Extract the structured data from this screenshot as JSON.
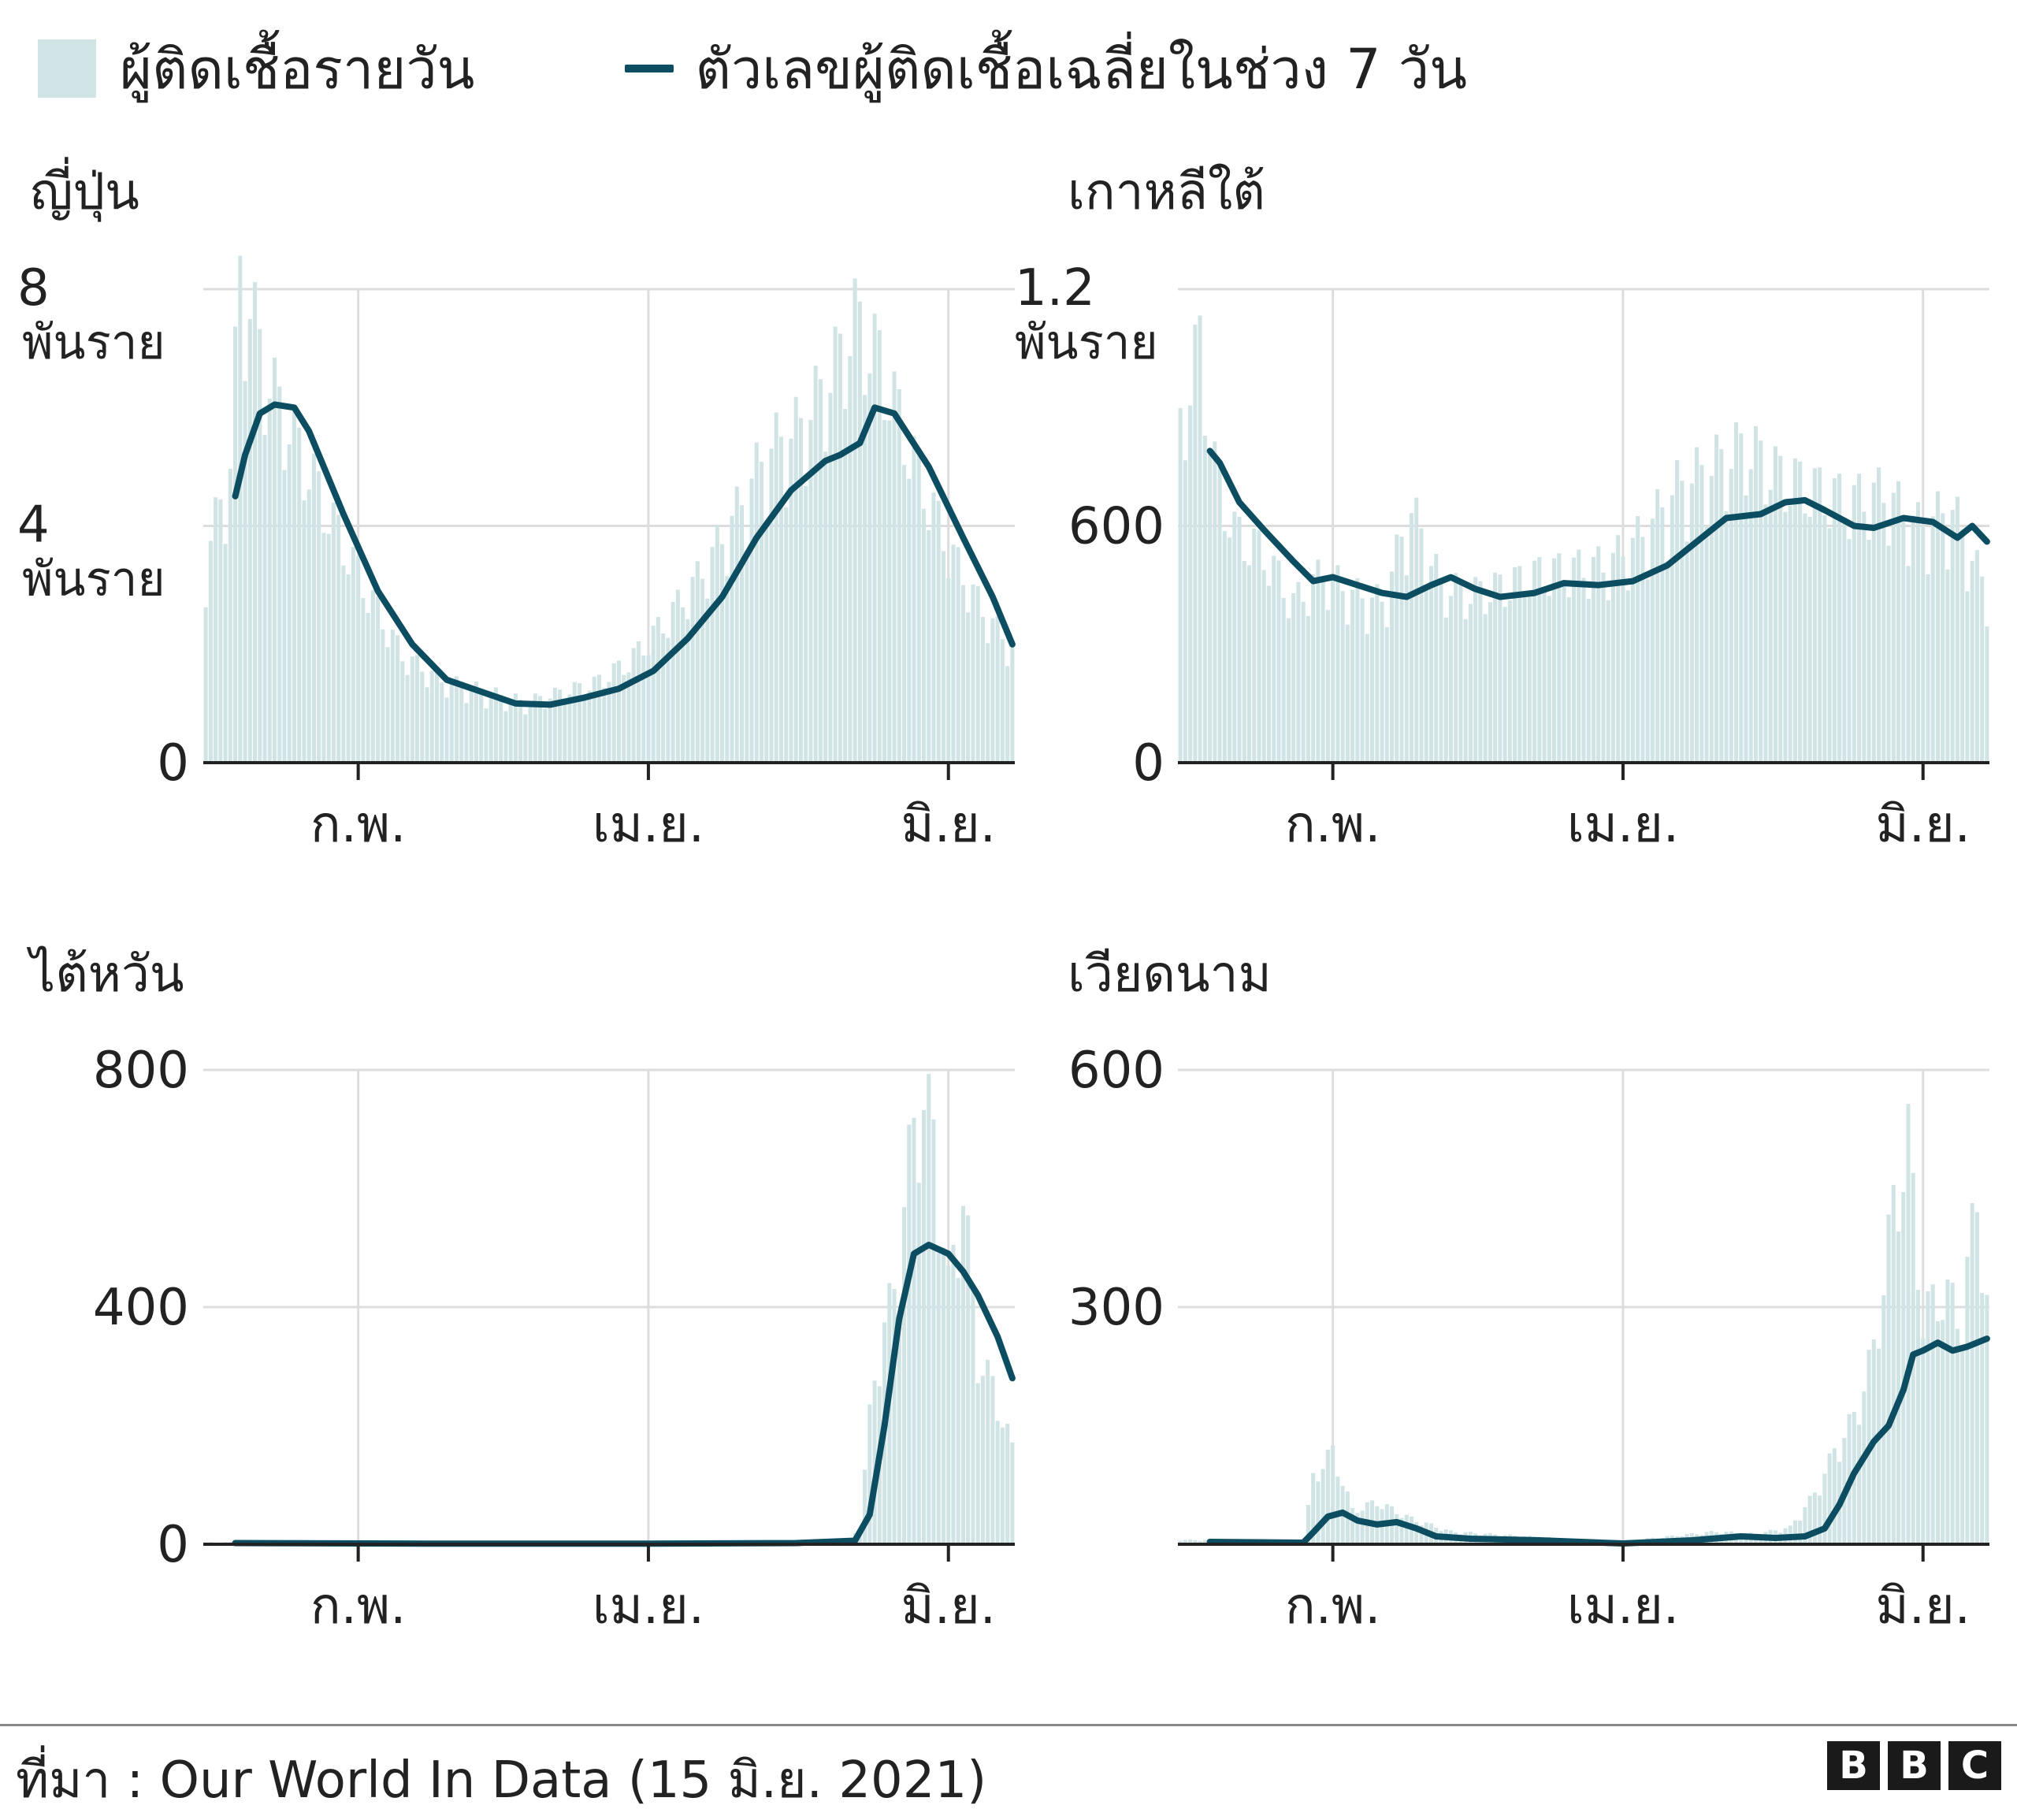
{
  "legend": {
    "daily_label": "ผู้ติดเชื้อรายวัน",
    "avg_label": "ตัวเลขผู้ติดเชื้อเฉลี่ยในช่วง 7 วัน"
  },
  "colors": {
    "bars": "#d1e4e5",
    "line": "#0d4d61",
    "grid": "#dddddd",
    "axis": "#222222"
  },
  "footer": {
    "source": "ที่มา : Our World In Data (15 มิ.ย. 2021)",
    "logo": [
      "B",
      "B",
      "C"
    ]
  },
  "chart_data": [
    {
      "type": "bar",
      "title": "ญี่ปุ่น",
      "x_start": "2021-01-01",
      "x_end": "2021-06-14",
      "xticks": [
        {
          "date": "2021-02-01",
          "label": "ก.พ."
        },
        {
          "date": "2021-04-01",
          "label": "เม.ย."
        },
        {
          "date": "2021-06-01",
          "label": "มิ.ย."
        }
      ],
      "ylim": [
        0,
        8000
      ],
      "yticks": [
        {
          "value": 0,
          "label": "0"
        },
        {
          "value": 4000,
          "label": "4\nพันราย"
        },
        {
          "value": 8000,
          "label": "8\nพันราย"
        }
      ],
      "daily_series": {
        "name": "ผู้ติดเชื้อรายวัน",
        "points": [
          [
            "2021-01-01",
            3200
          ],
          [
            "2021-01-06",
            4700
          ],
          [
            "2021-01-08",
            7800
          ],
          [
            "2021-01-14",
            6000
          ],
          [
            "2021-01-20",
            5000
          ],
          [
            "2021-01-27",
            3800
          ],
          [
            "2021-02-03",
            2700
          ],
          [
            "2021-02-10",
            1700
          ],
          [
            "2021-02-18",
            1300
          ],
          [
            "2021-02-28",
            1100
          ],
          [
            "2021-03-07",
            950
          ],
          [
            "2021-03-14",
            1100
          ],
          [
            "2021-03-21",
            1250
          ],
          [
            "2021-03-28",
            1600
          ],
          [
            "2021-04-04",
            2200
          ],
          [
            "2021-04-11",
            2900
          ],
          [
            "2021-04-18",
            3800
          ],
          [
            "2021-04-25",
            4900
          ],
          [
            "2021-05-02",
            5300
          ],
          [
            "2021-05-08",
            6100
          ],
          [
            "2021-05-13",
            7000
          ],
          [
            "2021-05-18",
            6400
          ],
          [
            "2021-05-25",
            4800
          ],
          [
            "2021-06-01",
            3400
          ],
          [
            "2021-06-08",
            2400
          ],
          [
            "2021-06-14",
            1800
          ]
        ]
      },
      "avg_series": {
        "name": "ตัวเลขผู้ติดเชื้อเฉลี่ยในช่วง 7 วัน",
        "points": [
          [
            "2021-01-07",
            4500
          ],
          [
            "2021-01-09",
            5200
          ],
          [
            "2021-01-12",
            5900
          ],
          [
            "2021-01-15",
            6050
          ],
          [
            "2021-01-19",
            6000
          ],
          [
            "2021-01-22",
            5600
          ],
          [
            "2021-01-29",
            4200
          ],
          [
            "2021-02-05",
            2900
          ],
          [
            "2021-02-12",
            2000
          ],
          [
            "2021-02-19",
            1400
          ],
          [
            "2021-02-26",
            1200
          ],
          [
            "2021-03-05",
            1000
          ],
          [
            "2021-03-12",
            980
          ],
          [
            "2021-03-19",
            1100
          ],
          [
            "2021-03-26",
            1250
          ],
          [
            "2021-04-02",
            1550
          ],
          [
            "2021-04-09",
            2100
          ],
          [
            "2021-04-16",
            2800
          ],
          [
            "2021-04-23",
            3800
          ],
          [
            "2021-04-30",
            4600
          ],
          [
            "2021-05-07",
            5100
          ],
          [
            "2021-05-10",
            5200
          ],
          [
            "2021-05-14",
            5400
          ],
          [
            "2021-05-17",
            6000
          ],
          [
            "2021-05-21",
            5900
          ],
          [
            "2021-05-28",
            5000
          ],
          [
            "2021-06-04",
            3800
          ],
          [
            "2021-06-10",
            2800
          ],
          [
            "2021-06-14",
            2000
          ]
        ]
      }
    },
    {
      "type": "bar",
      "title": "เกาหลีใต้",
      "x_start": "2021-01-01",
      "x_end": "2021-06-14",
      "xticks": [
        {
          "date": "2021-02-01",
          "label": "ก.พ."
        },
        {
          "date": "2021-04-01",
          "label": "เม.ย."
        },
        {
          "date": "2021-06-01",
          "label": "มิ.ย."
        }
      ],
      "ylim": [
        0,
        1200
      ],
      "yticks": [
        {
          "value": 0,
          "label": "0"
        },
        {
          "value": 600,
          "label": "600"
        },
        {
          "value": 1200,
          "label": "1.2\nพันราย"
        }
      ],
      "daily_series": {
        "name": "ผู้ติดเชื้อรายวัน",
        "points": [
          [
            "2021-01-01",
            800
          ],
          [
            "2021-01-05",
            1000
          ],
          [
            "2021-01-08",
            700
          ],
          [
            "2021-01-12",
            550
          ],
          [
            "2021-01-18",
            500
          ],
          [
            "2021-01-24",
            380
          ],
          [
            "2021-01-30",
            450
          ],
          [
            "2021-02-05",
            400
          ],
          [
            "2021-02-11",
            380
          ],
          [
            "2021-02-17",
            600
          ],
          [
            "2021-02-23",
            420
          ],
          [
            "2021-03-01",
            400
          ],
          [
            "2021-03-08",
            420
          ],
          [
            "2021-03-15",
            450
          ],
          [
            "2021-03-22",
            460
          ],
          [
            "2021-03-29",
            470
          ],
          [
            "2021-04-05",
            540
          ],
          [
            "2021-04-12",
            650
          ],
          [
            "2021-04-19",
            700
          ],
          [
            "2021-04-26",
            750
          ],
          [
            "2021-05-03",
            680
          ],
          [
            "2021-05-10",
            650
          ],
          [
            "2021-05-17",
            620
          ],
          [
            "2021-05-24",
            640
          ],
          [
            "2021-05-31",
            560
          ],
          [
            "2021-06-07",
            600
          ],
          [
            "2021-06-14",
            400
          ]
        ]
      },
      "avg_series": {
        "name": "ตัวเลขผู้ติดเชื้อเฉลี่ยในช่วง 7 วัน",
        "points": [
          [
            "2021-01-07",
            790
          ],
          [
            "2021-01-09",
            760
          ],
          [
            "2021-01-13",
            660
          ],
          [
            "2021-01-18",
            590
          ],
          [
            "2021-01-24",
            510
          ],
          [
            "2021-01-28",
            460
          ],
          [
            "2021-02-01",
            470
          ],
          [
            "2021-02-06",
            450
          ],
          [
            "2021-02-11",
            430
          ],
          [
            "2021-02-16",
            420
          ],
          [
            "2021-02-21",
            450
          ],
          [
            "2021-02-25",
            470
          ],
          [
            "2021-03-02",
            440
          ],
          [
            "2021-03-07",
            420
          ],
          [
            "2021-03-14",
            430
          ],
          [
            "2021-03-20",
            455
          ],
          [
            "2021-03-27",
            450
          ],
          [
            "2021-04-03",
            460
          ],
          [
            "2021-04-10",
            500
          ],
          [
            "2021-04-17",
            570
          ],
          [
            "2021-04-22",
            620
          ],
          [
            "2021-04-29",
            630
          ],
          [
            "2021-05-04",
            660
          ],
          [
            "2021-05-08",
            665
          ],
          [
            "2021-05-12",
            640
          ],
          [
            "2021-05-18",
            600
          ],
          [
            "2021-05-22",
            595
          ],
          [
            "2021-05-28",
            620
          ],
          [
            "2021-06-03",
            610
          ],
          [
            "2021-06-08",
            570
          ],
          [
            "2021-06-11",
            600
          ],
          [
            "2021-06-14",
            560
          ]
        ]
      }
    },
    {
      "type": "bar",
      "title": "ไต้หวัน",
      "x_start": "2021-01-01",
      "x_end": "2021-06-14",
      "xticks": [
        {
          "date": "2021-02-01",
          "label": "ก.พ."
        },
        {
          "date": "2021-04-01",
          "label": "เม.ย."
        },
        {
          "date": "2021-06-01",
          "label": "มิ.ย."
        }
      ],
      "ylim": [
        0,
        800
      ],
      "yticks": [
        {
          "value": 0,
          "label": "0"
        },
        {
          "value": 400,
          "label": "400"
        },
        {
          "value": 800,
          "label": "800"
        }
      ],
      "daily_series": {
        "name": "ผู้ติดเชื้อรายวัน",
        "points": [
          [
            "2021-01-01",
            3
          ],
          [
            "2021-05-12",
            5
          ],
          [
            "2021-05-14",
            30
          ],
          [
            "2021-05-16",
            200
          ],
          [
            "2021-05-18",
            320
          ],
          [
            "2021-05-21",
            400
          ],
          [
            "2021-05-24",
            600
          ],
          [
            "2021-05-26",
            720
          ],
          [
            "2021-05-29",
            650
          ],
          [
            "2021-06-01",
            400
          ],
          [
            "2021-06-04",
            560
          ],
          [
            "2021-06-07",
            300
          ],
          [
            "2021-06-10",
            250
          ],
          [
            "2021-06-14",
            150
          ]
        ]
      },
      "avg_series": {
        "name": "ตัวเลขผู้ติดเชื้อเฉลี่ยในช่วง 7 วัน",
        "points": [
          [
            "2021-01-07",
            2
          ],
          [
            "2021-02-15",
            1
          ],
          [
            "2021-04-01",
            1
          ],
          [
            "2021-05-01",
            2
          ],
          [
            "2021-05-13",
            6
          ],
          [
            "2021-05-16",
            50
          ],
          [
            "2021-05-19",
            200
          ],
          [
            "2021-05-22",
            380
          ],
          [
            "2021-05-25",
            490
          ],
          [
            "2021-05-28",
            505
          ],
          [
            "2021-06-01",
            490
          ],
          [
            "2021-06-04",
            460
          ],
          [
            "2021-06-07",
            420
          ],
          [
            "2021-06-11",
            350
          ],
          [
            "2021-06-14",
            280
          ]
        ]
      }
    },
    {
      "type": "bar",
      "title": "เวียดนาม",
      "x_start": "2021-01-01",
      "x_end": "2021-06-14",
      "xticks": [
        {
          "date": "2021-02-01",
          "label": "ก.พ."
        },
        {
          "date": "2021-04-01",
          "label": "เม.ย."
        },
        {
          "date": "2021-06-01",
          "label": "มิ.ย."
        }
      ],
      "ylim": [
        0,
        600
      ],
      "yticks": [
        {
          "value": 300,
          "label": "300"
        },
        {
          "value": 600,
          "label": "600"
        }
      ],
      "daily_series": {
        "name": "ผู้ติดเชื้อรายวัน",
        "points": [
          [
            "2021-01-01",
            5
          ],
          [
            "2021-01-26",
            5
          ],
          [
            "2021-01-28",
            80
          ],
          [
            "2021-02-01",
            110
          ],
          [
            "2021-02-05",
            40
          ],
          [
            "2021-02-10",
            50
          ],
          [
            "2021-02-17",
            30
          ],
          [
            "2021-02-25",
            15
          ],
          [
            "2021-03-10",
            10
          ],
          [
            "2021-03-31",
            3
          ],
          [
            "2021-04-20",
            15
          ],
          [
            "2021-04-28",
            12
          ],
          [
            "2021-05-05",
            20
          ],
          [
            "2021-05-10",
            60
          ],
          [
            "2021-05-14",
            110
          ],
          [
            "2021-05-18",
            150
          ],
          [
            "2021-05-22",
            230
          ],
          [
            "2021-05-26",
            400
          ],
          [
            "2021-05-29",
            480
          ],
          [
            "2021-06-01",
            270
          ],
          [
            "2021-06-05",
            300
          ],
          [
            "2021-06-09",
            270
          ],
          [
            "2021-06-12",
            420
          ],
          [
            "2021-06-14",
            280
          ]
        ]
      },
      "avg_series": {
        "name": "ตัวเลขผู้ติดเชื้อเฉลี่ยในช่วง 7 วัน",
        "points": [
          [
            "2021-01-07",
            3
          ],
          [
            "2021-01-26",
            2
          ],
          [
            "2021-01-28",
            15
          ],
          [
            "2021-01-31",
            35
          ],
          [
            "2021-02-03",
            40
          ],
          [
            "2021-02-06",
            30
          ],
          [
            "2021-02-10",
            25
          ],
          [
            "2021-02-14",
            28
          ],
          [
            "2021-02-18",
            20
          ],
          [
            "2021-02-22",
            10
          ],
          [
            "2021-03-01",
            7
          ],
          [
            "2021-03-15",
            5
          ],
          [
            "2021-04-01",
            1
          ],
          [
            "2021-04-15",
            5
          ],
          [
            "2021-04-25",
            10
          ],
          [
            "2021-05-02",
            8
          ],
          [
            "2021-05-08",
            10
          ],
          [
            "2021-05-12",
            20
          ],
          [
            "2021-05-15",
            50
          ],
          [
            "2021-05-18",
            90
          ],
          [
            "2021-05-22",
            130
          ],
          [
            "2021-05-25",
            150
          ],
          [
            "2021-05-28",
            195
          ],
          [
            "2021-05-30",
            240
          ],
          [
            "2021-06-01",
            245
          ],
          [
            "2021-06-04",
            255
          ],
          [
            "2021-06-07",
            245
          ],
          [
            "2021-06-10",
            250
          ],
          [
            "2021-06-14",
            260
          ]
        ]
      }
    }
  ]
}
